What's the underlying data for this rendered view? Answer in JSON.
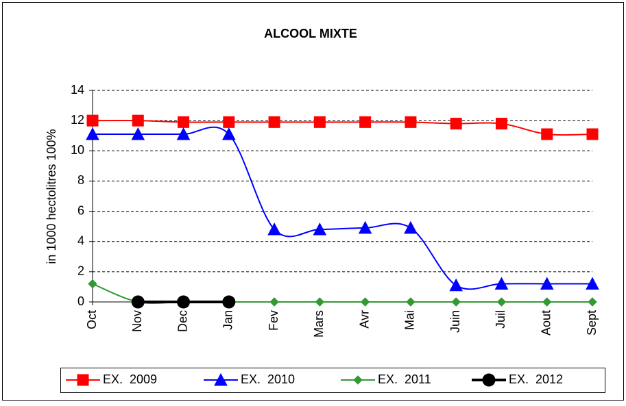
{
  "chart_data": {
    "type": "line",
    "title": "ALCOOL MIXTE",
    "y_label": "in 1000 hectolitres 100%",
    "categories": [
      "Oct",
      "Nov",
      "Dec",
      "Jan",
      "Fev",
      "Mars",
      "Avr",
      "Mai",
      "Juin",
      "Juil",
      "Aout",
      "Sept"
    ],
    "ylim": [
      0,
      14
    ],
    "yticks": [
      0,
      2,
      4,
      6,
      8,
      10,
      12,
      14
    ],
    "grid": true,
    "legend": "bottom",
    "series": [
      {
        "name": "EX.  2009",
        "color": "#ff0000",
        "marker": "square",
        "values": [
          12,
          12,
          11.9,
          11.9,
          11.9,
          11.9,
          11.9,
          11.9,
          11.8,
          11.8,
          11.1,
          11.1
        ]
      },
      {
        "name": "EX.  2010",
        "color": "#0000ff",
        "marker": "triangle",
        "values": [
          11.1,
          11.1,
          11.1,
          11.1,
          4.8,
          4.8,
          4.9,
          4.9,
          1.1,
          1.2,
          1.2,
          1.2
        ]
      },
      {
        "name": "EX.  2011",
        "color": "#339933",
        "marker": "diamond",
        "values": [
          1.2,
          0,
          0,
          0,
          0,
          0,
          0,
          0,
          0,
          0,
          0,
          0
        ]
      },
      {
        "name": "EX.  2012",
        "color": "#000000",
        "marker": "circle",
        "values": [
          null,
          0,
          0,
          0,
          null,
          null,
          null,
          null,
          null,
          null,
          null,
          null
        ]
      }
    ]
  }
}
